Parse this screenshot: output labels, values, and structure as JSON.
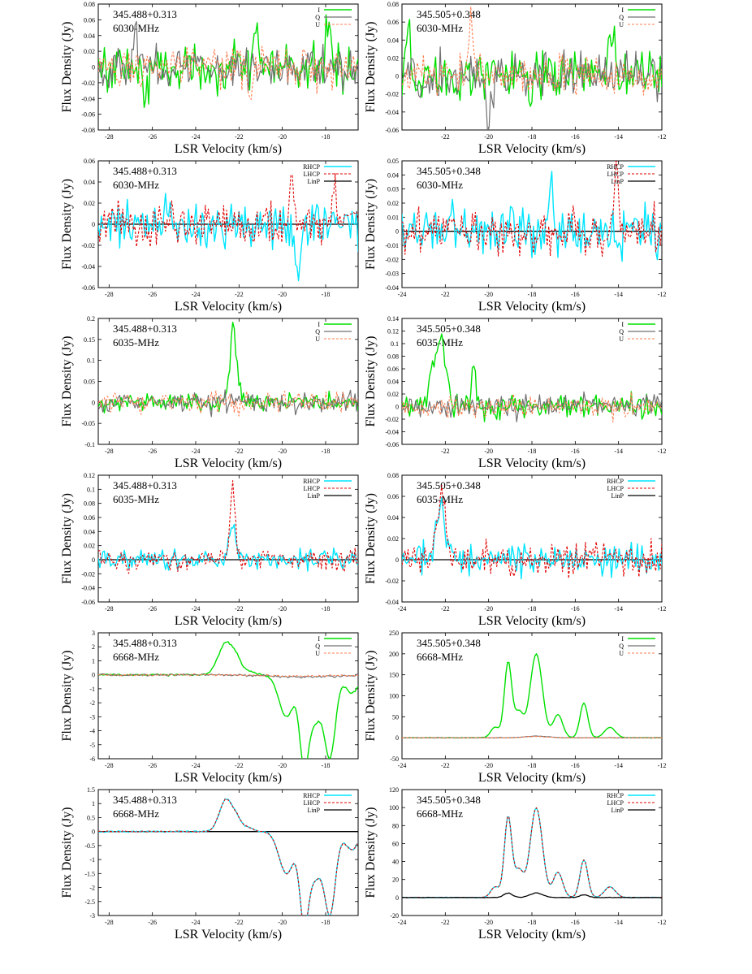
{
  "axis_titles": {
    "x": "LSR Velocity (km/s)",
    "y": "Flux Density (Jy)"
  },
  "colors": {
    "I": "#00e000",
    "Q": "#707070",
    "U": "#ff7f50",
    "RHCP": "#00e5ff",
    "LHCP": "#e00000",
    "LinP": "#000000"
  },
  "chart_data": [
    {
      "id": "p1",
      "type": "line",
      "source": "345.488+0.313",
      "freq": "6030-MHz",
      "kind": "stokes",
      "xlim": [
        -28.5,
        -16.5
      ],
      "ylim": [
        -0.08,
        0.08
      ],
      "xticks": [
        -28,
        -26,
        -24,
        -22,
        -20,
        -18
      ],
      "xticklabels": [
        "-28",
        "-26",
        "-24",
        "-22",
        "-20",
        "-18"
      ],
      "yticks": [
        -0.08,
        -0.06,
        -0.04,
        -0.02,
        0,
        0.02,
        0.04,
        0.06,
        0.08
      ],
      "yticklabels": [
        "-0.08",
        "-0.06",
        "-0.04",
        "-0.02",
        "0",
        "0.02",
        "0.04",
        "0.06",
        "0.08"
      ],
      "legend": [
        "I",
        "Q",
        "U"
      ],
      "zero_line": false,
      "noise": {
        "I": 0.025,
        "Q": 0.022,
        "U": 0.02
      },
      "features": {
        "I": [
          [
            -21.2,
            0.055,
            0.1
          ],
          [
            -17.9,
            0.055,
            0.1
          ],
          [
            -26.3,
            -0.045,
            0.1
          ]
        ],
        "Q": [
          [
            -26.8,
            0.045,
            0.1
          ]
        ],
        "U": [
          [
            -21.5,
            -0.045,
            0.1
          ]
        ]
      }
    },
    {
      "id": "p2",
      "type": "line",
      "source": "345.505+0.348",
      "freq": "6030-MHz",
      "kind": "stokes",
      "xlim": [
        -24,
        -12
      ],
      "ylim": [
        -0.06,
        0.08
      ],
      "xticks": [
        -22,
        -20,
        -18,
        -16,
        -14,
        -12
      ],
      "xticklabels": [
        "-22",
        "-20",
        "-18",
        "-16",
        "-14",
        "-12"
      ],
      "yticks": [
        -0.06,
        -0.04,
        -0.02,
        0,
        0.02,
        0.04,
        0.06,
        0.08
      ],
      "yticklabels": [
        "-0.06",
        "-0.04",
        "-0.02",
        "0",
        "0.02",
        "0.04",
        "0.06",
        "0.08"
      ],
      "legend": [
        "I",
        "Q",
        "U"
      ],
      "zero_line": false,
      "noise": {
        "I": 0.022,
        "Q": 0.02,
        "U": 0.018
      },
      "features": {
        "I": [
          [
            -23.7,
            0.06,
            0.1
          ],
          [
            -14.3,
            0.06,
            0.1
          ]
        ],
        "U": [
          [
            -20.8,
            0.065,
            0.1
          ]
        ],
        "Q": [
          [
            -20.0,
            -0.05,
            0.1
          ]
        ]
      }
    },
    {
      "id": "p3",
      "type": "line",
      "source": "345.488+0.313",
      "freq": "6030-MHz",
      "kind": "circ",
      "xlim": [
        -28.5,
        -16.5
      ],
      "ylim": [
        -0.06,
        0.06
      ],
      "xticks": [
        -28,
        -26,
        -24,
        -22,
        -20,
        -18
      ],
      "xticklabels": [
        "-28",
        "-26",
        "-24",
        "-22",
        "-20",
        "-18"
      ],
      "yticks": [
        -0.06,
        -0.04,
        -0.02,
        0,
        0.02,
        0.04,
        0.06
      ],
      "yticklabels": [
        "-0.06",
        "-0.04",
        "-0.02",
        "0",
        "0.02",
        "0.04",
        "0.06"
      ],
      "legend": [
        "RHCP",
        "LHCP",
        "LinP"
      ],
      "zero_line": true,
      "noise": {
        "RHCP": 0.017,
        "LHCP": 0.016
      },
      "features": {
        "LHCP": [
          [
            -19.6,
            0.045,
            0.1
          ],
          [
            -17.6,
            0.04,
            0.1
          ]
        ],
        "RHCP": [
          [
            -19.3,
            -0.055,
            0.1
          ]
        ]
      }
    },
    {
      "id": "p4",
      "type": "line",
      "source": "345.505+0.348",
      "freq": "6030-MHz",
      "kind": "circ",
      "xlim": [
        -24,
        -12
      ],
      "ylim": [
        -0.04,
        0.05
      ],
      "xticks": [
        -24,
        -22,
        -20,
        -18,
        -16,
        -14,
        -12
      ],
      "xticklabels": [
        "-24",
        "-22",
        "-20",
        "-18",
        "-16",
        "-14",
        "-12"
      ],
      "yticks": [
        -0.04,
        -0.03,
        -0.02,
        -0.01,
        0,
        0.01,
        0.02,
        0.03,
        0.04,
        0.05
      ],
      "yticklabels": [
        "-0.04",
        "-0.03",
        "-0.02",
        "-0.01",
        "0",
        "0.01",
        "0.02",
        "0.03",
        "0.04",
        "0.05"
      ],
      "legend": [
        "RHCP",
        "LHCP",
        "LinP"
      ],
      "zero_line": true,
      "noise": {
        "RHCP": 0.014,
        "LHCP": 0.013
      },
      "features": {
        "RHCP": [
          [
            -17.1,
            0.045,
            0.1
          ]
        ],
        "LHCP": [
          [
            -14.1,
            0.04,
            0.1
          ]
        ]
      }
    },
    {
      "id": "p5",
      "type": "line",
      "source": "345.488+0.313",
      "freq": "6035-MHz",
      "kind": "stokes",
      "xlim": [
        -28.5,
        -16.5
      ],
      "ylim": [
        -0.1,
        0.2
      ],
      "xticks": [
        -28,
        -26,
        -24,
        -22,
        -20,
        -18
      ],
      "xticklabels": [
        "-28",
        "-26",
        "-24",
        "-22",
        "-20",
        "-18"
      ],
      "yticks": [
        -0.1,
        -0.05,
        0,
        0.05,
        0.1,
        0.15,
        0.2
      ],
      "yticklabels": [
        "-0.1",
        "-0.05",
        "0",
        "0.05",
        "0.1",
        "0.15",
        "0.2"
      ],
      "legend": [
        "I",
        "Q",
        "U"
      ],
      "zero_line": false,
      "noise": {
        "I": 0.018,
        "Q": 0.02,
        "U": 0.02
      },
      "features": {
        "I": [
          [
            -22.3,
            0.16,
            0.12
          ],
          [
            -22.1,
            0.05,
            0.15
          ]
        ]
      }
    },
    {
      "id": "p6",
      "type": "line",
      "source": "345.505+0.348",
      "freq": "6035-MHz",
      "kind": "stokes",
      "xlim": [
        -24,
        -12
      ],
      "ylim": [
        -0.06,
        0.14
      ],
      "xticks": [
        -22,
        -20,
        -18,
        -16,
        -14,
        -12
      ],
      "xticklabels": [
        "-22",
        "-20",
        "-18",
        "-16",
        "-14",
        "-12"
      ],
      "yticks": [
        -0.06,
        -0.04,
        -0.02,
        0,
        0.02,
        0.04,
        0.06,
        0.08,
        0.1,
        0.12,
        0.14
      ],
      "yticklabels": [
        "-0.06",
        "-0.04",
        "-0.02",
        "0",
        "0.02",
        "0.04",
        "0.06",
        "0.08",
        "0.1",
        "0.12",
        "0.14"
      ],
      "legend": [
        "I",
        "Q",
        "U"
      ],
      "zero_line": false,
      "noise": {
        "I": 0.016,
        "Q": 0.015,
        "U": 0.015
      },
      "features": {
        "I": [
          [
            -22.2,
            0.11,
            0.2
          ],
          [
            -22.6,
            0.06,
            0.15
          ],
          [
            -20.7,
            0.07,
            0.1
          ]
        ]
      }
    },
    {
      "id": "p7",
      "type": "line",
      "source": "345.488+0.313",
      "freq": "6035-MHz",
      "kind": "circ",
      "xlim": [
        -28.5,
        -16.5
      ],
      "ylim": [
        -0.06,
        0.12
      ],
      "xticks": [
        -28,
        -26,
        -24,
        -22,
        -20,
        -18
      ],
      "xticklabels": [
        "-28",
        "-26",
        "-24",
        "-22",
        "-20",
        "-18"
      ],
      "yticks": [
        -0.06,
        -0.04,
        -0.02,
        0,
        0.02,
        0.04,
        0.06,
        0.08,
        0.1,
        0.12
      ],
      "yticklabels": [
        "-0.06",
        "-0.04",
        "-0.02",
        "0",
        "0.02",
        "0.04",
        "0.06",
        "0.08",
        "0.1",
        "0.12"
      ],
      "legend": [
        "RHCP",
        "LHCP",
        "LinP"
      ],
      "zero_line": true,
      "noise": {
        "RHCP": 0.012,
        "LHCP": 0.012
      },
      "features": {
        "LHCP": [
          [
            -22.3,
            0.1,
            0.12
          ]
        ],
        "RHCP": [
          [
            -22.3,
            0.045,
            0.15
          ]
        ]
      }
    },
    {
      "id": "p8",
      "type": "line",
      "source": "345.505+0.348",
      "freq": "6035-MHz",
      "kind": "circ",
      "xlim": [
        -24,
        -12
      ],
      "ylim": [
        -0.04,
        0.08
      ],
      "xticks": [
        -24,
        -22,
        -20,
        -18,
        -16,
        -14,
        -12
      ],
      "xticklabels": [
        "-24",
        "-22",
        "-20",
        "-18",
        "-16",
        "-14",
        "-12"
      ],
      "yticks": [
        -0.04,
        -0.02,
        0,
        0.02,
        0.04,
        0.06,
        0.08
      ],
      "yticklabels": [
        "-0.04",
        "-0.02",
        "0",
        "0.02",
        "0.04",
        "0.06",
        "0.08"
      ],
      "legend": [
        "RHCP",
        "LHCP",
        "LinP"
      ],
      "zero_line": true,
      "noise": {
        "RHCP": 0.012,
        "LHCP": 0.012
      },
      "features": {
        "LHCP": [
          [
            -22.2,
            0.065,
            0.2
          ]
        ],
        "RHCP": [
          [
            -22.2,
            0.055,
            0.2
          ]
        ]
      }
    },
    {
      "id": "p9",
      "type": "line",
      "source": "345.488+0.313",
      "freq": "6668-MHz",
      "kind": "stokes",
      "xlim": [
        -28.5,
        -16.5
      ],
      "ylim": [
        -6,
        3
      ],
      "xticks": [
        -28,
        -26,
        -24,
        -22,
        -20,
        -18
      ],
      "xticklabels": [
        "-28",
        "-26",
        "-24",
        "-22",
        "-20",
        "-18"
      ],
      "yticks": [
        -6,
        -5,
        -4,
        -3,
        -2,
        -1,
        0,
        1,
        2,
        3
      ],
      "yticklabels": [
        "-6",
        "-5",
        "-4",
        "-3",
        "-2",
        "-1",
        "0",
        "1",
        "2",
        "3"
      ],
      "legend": [
        "I",
        "Q",
        "U"
      ],
      "zero_line": false,
      "noise": {
        "I": 0.06,
        "Q": 0.06,
        "U": 0.06
      },
      "features": {
        "I": [
          [
            -22.6,
            2.3,
            0.35
          ],
          [
            -22.1,
            0.7,
            0.2
          ],
          [
            -21.6,
            0.3,
            0.25
          ],
          [
            -19.8,
            -3.0,
            0.35
          ],
          [
            -19.0,
            -5.8,
            0.2
          ],
          [
            -18.5,
            -3.2,
            0.3
          ],
          [
            -17.8,
            -5.8,
            0.25
          ],
          [
            -16.8,
            -1.3,
            0.3
          ]
        ],
        "Q": [
          [
            -19,
            -0.15,
            1.5
          ]
        ],
        "U": [
          [
            -19,
            -0.1,
            1.5
          ]
        ]
      }
    },
    {
      "id": "p10",
      "type": "line",
      "source": "345.505+0.348",
      "freq": "6668-MHz",
      "kind": "stokes",
      "xlim": [
        -24,
        -12
      ],
      "ylim": [
        -50,
        250
      ],
      "xticks": [
        -24,
        -22,
        -20,
        -18,
        -16,
        -14,
        -12
      ],
      "xticklabels": [
        "-24",
        "-22",
        "-20",
        "-18",
        "-16",
        "-14",
        "-12"
      ],
      "yticks": [
        -50,
        0,
        50,
        100,
        150,
        200,
        250
      ],
      "yticklabels": [
        "-50",
        "0",
        "50",
        "100",
        "150",
        "200",
        "250"
      ],
      "legend": [
        "I",
        "Q",
        "U"
      ],
      "zero_line": false,
      "noise": {
        "I": 0.5,
        "Q": 0.5,
        "U": 0.5
      },
      "features": {
        "I": [
          [
            -19.7,
            25,
            0.2
          ],
          [
            -19.1,
            180,
            0.17
          ],
          [
            -18.6,
            60,
            0.2
          ],
          [
            -17.8,
            200,
            0.28
          ],
          [
            -16.8,
            55,
            0.22
          ],
          [
            -15.6,
            83,
            0.18
          ],
          [
            -14.4,
            25,
            0.25
          ]
        ],
        "Q": [
          [
            -17.8,
            4,
            0.5
          ]
        ],
        "U": [
          [
            -17.8,
            3,
            0.5
          ]
        ]
      }
    },
    {
      "id": "p11",
      "type": "line",
      "source": "345.488+0.313",
      "freq": "6668-MHz",
      "kind": "circ",
      "xlim": [
        -28.5,
        -16.5
      ],
      "ylim": [
        -3,
        1.5
      ],
      "xticks": [
        -28,
        -26,
        -24,
        -22,
        -20,
        -18
      ],
      "xticklabels": [
        "-28",
        "-26",
        "-24",
        "-22",
        "-20",
        "-18"
      ],
      "yticks": [
        -3,
        -2.5,
        -2,
        -1.5,
        -1,
        -0.5,
        0,
        0.5,
        1,
        1.5
      ],
      "yticklabels": [
        "-3",
        "-2.5",
        "-2",
        "-1.5",
        "-1",
        "-0.5",
        "0",
        "0.5",
        "1",
        "1.5"
      ],
      "legend": [
        "RHCP",
        "LHCP",
        "LinP"
      ],
      "zero_line": true,
      "noise": {
        "RHCP": 0.02,
        "LHCP": 0.02
      },
      "features": {
        "RHCP": [
          [
            -22.6,
            1.15,
            0.3
          ],
          [
            -22.1,
            0.35,
            0.2
          ],
          [
            -21.6,
            0.15,
            0.25
          ],
          [
            -19.8,
            -1.5,
            0.35
          ],
          [
            -19.0,
            -2.9,
            0.2
          ],
          [
            -18.5,
            -1.6,
            0.3
          ],
          [
            -17.8,
            -2.9,
            0.25
          ],
          [
            -16.8,
            -0.65,
            0.3
          ]
        ],
        "LHCP": [
          [
            -22.6,
            1.15,
            0.3
          ],
          [
            -22.1,
            0.35,
            0.2
          ],
          [
            -21.6,
            0.15,
            0.25
          ],
          [
            -19.8,
            -1.5,
            0.35
          ],
          [
            -19.0,
            -2.9,
            0.2
          ],
          [
            -18.5,
            -1.6,
            0.3
          ],
          [
            -17.8,
            -2.9,
            0.25
          ],
          [
            -16.8,
            -0.65,
            0.3
          ]
        ]
      }
    },
    {
      "id": "p12",
      "type": "line",
      "source": "345.505+0.348",
      "freq": "6668-MHz",
      "kind": "circ",
      "xlim": [
        -24,
        -12
      ],
      "ylim": [
        -20,
        120
      ],
      "xticks": [
        -24,
        -22,
        -20,
        -18,
        -16,
        -14,
        -12
      ],
      "xticklabels": [
        "-24",
        "-22",
        "-20",
        "-18",
        "-16",
        "-14",
        "-12"
      ],
      "yticks": [
        -20,
        0,
        20,
        40,
        60,
        80,
        100,
        120
      ],
      "yticklabels": [
        "-20",
        "0",
        "20",
        "40",
        "60",
        "80",
        "100",
        "120"
      ],
      "legend": [
        "RHCP",
        "LHCP",
        "LinP"
      ],
      "zero_line": false,
      "noise": {
        "RHCP": 0.3,
        "LHCP": 0.3,
        "LinP": 0.2
      },
      "features": {
        "RHCP": [
          [
            -19.7,
            12,
            0.2
          ],
          [
            -19.1,
            90,
            0.17
          ],
          [
            -18.6,
            30,
            0.2
          ],
          [
            -17.8,
            100,
            0.28
          ],
          [
            -16.8,
            28,
            0.22
          ],
          [
            -15.6,
            42,
            0.18
          ],
          [
            -14.4,
            12,
            0.25
          ]
        ],
        "LHCP": [
          [
            -19.7,
            12,
            0.2
          ],
          [
            -19.1,
            90,
            0.17
          ],
          [
            -18.6,
            30,
            0.2
          ],
          [
            -17.8,
            100,
            0.28
          ],
          [
            -16.8,
            28,
            0.22
          ],
          [
            -15.6,
            42,
            0.18
          ],
          [
            -14.4,
            12,
            0.25
          ]
        ],
        "LinP": [
          [
            -19.1,
            5,
            0.2
          ],
          [
            -17.8,
            5,
            0.3
          ],
          [
            -15.6,
            3,
            0.2
          ]
        ]
      }
    }
  ]
}
